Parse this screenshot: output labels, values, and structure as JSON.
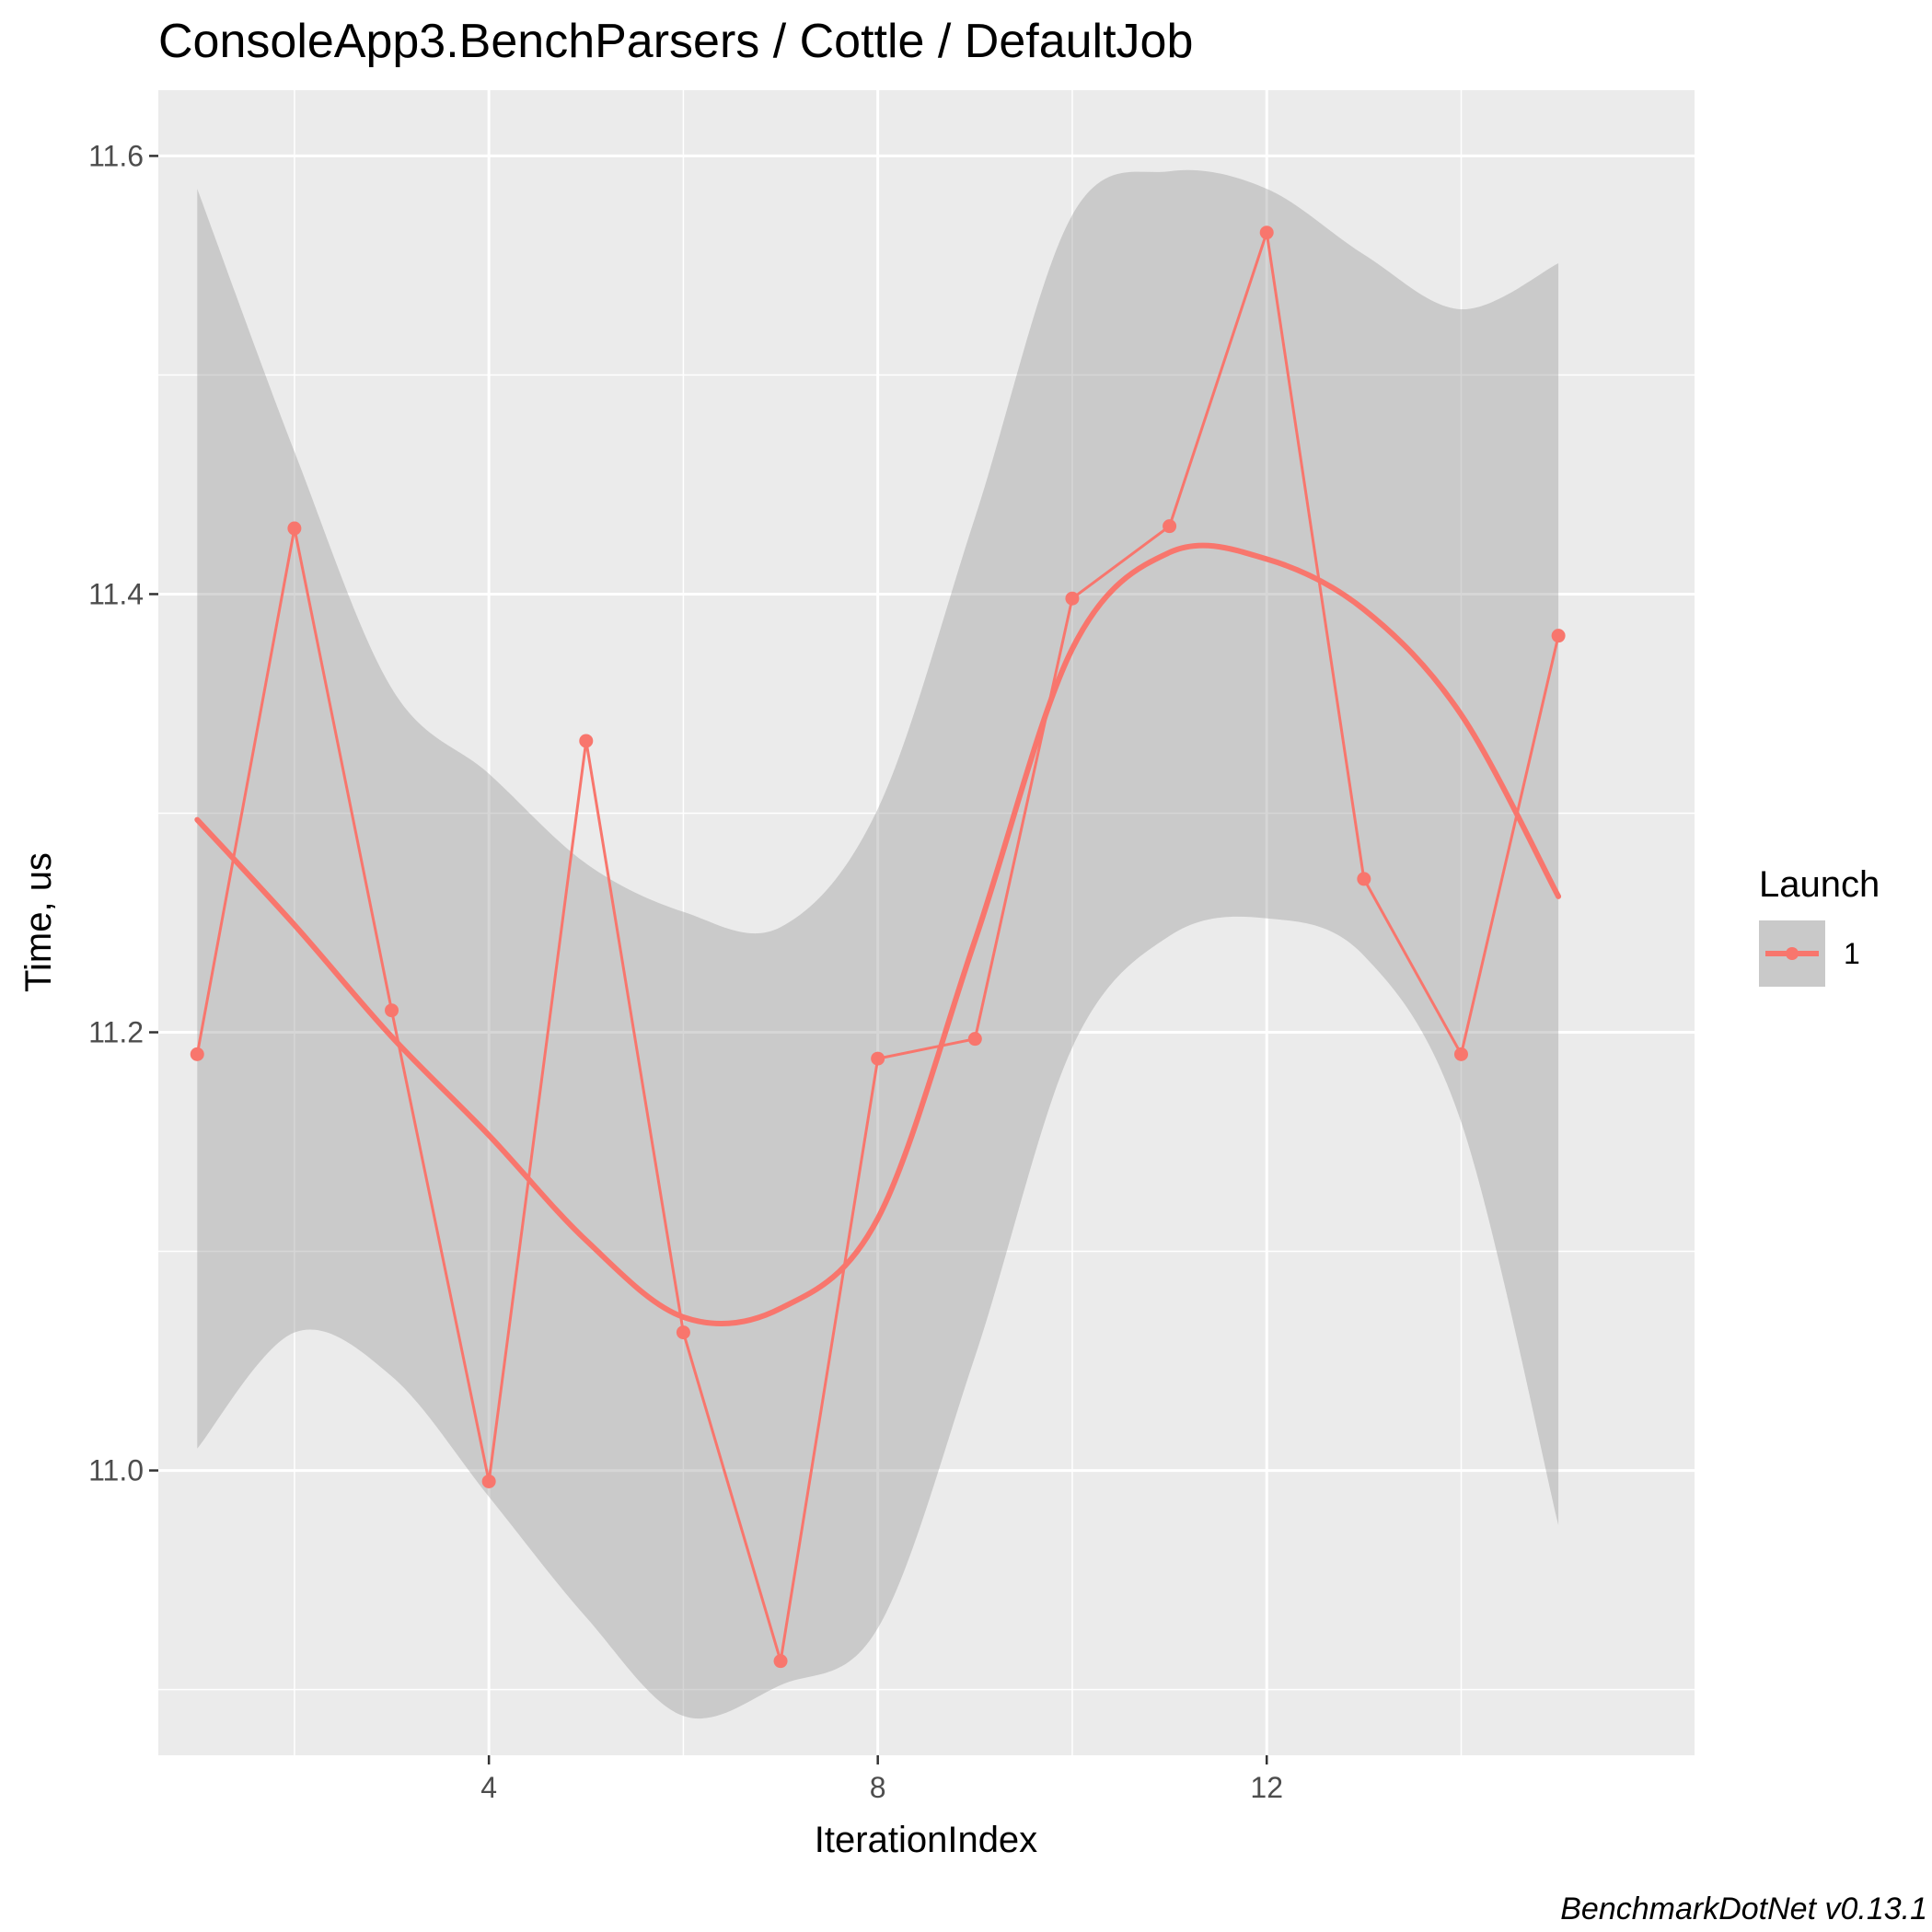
{
  "chart_data": {
    "type": "line",
    "title": "ConsoleApp3.BenchParsers / Cottle / DefaultJob",
    "xlabel": "IterationIndex",
    "ylabel": "Time, us",
    "caption": "BenchmarkDotNet v0.13.1",
    "xlim": [
      0.6,
      16.4
    ],
    "ylim": [
      10.87,
      11.63
    ],
    "x_ticks": [
      4,
      8,
      12
    ],
    "x_tick_labels": [
      "4",
      "8",
      "12"
    ],
    "x_minor_ticks": [
      2,
      6,
      10,
      14
    ],
    "y_ticks": [
      11.0,
      11.2,
      11.4,
      11.6
    ],
    "y_tick_labels": [
      "11.0",
      "11.2",
      "11.4",
      "11.6"
    ],
    "y_minor_ticks": [
      10.9,
      11.1,
      11.3,
      11.5
    ],
    "grid": true,
    "legend": {
      "title": "Launch",
      "position": "right",
      "entries": [
        "1"
      ]
    },
    "series": [
      {
        "name": "1",
        "color": "#F8766D",
        "x": [
          1,
          2,
          3,
          4,
          5,
          6,
          7,
          8,
          9,
          10,
          11,
          12,
          13,
          14,
          15
        ],
        "values": [
          11.19,
          11.43,
          11.21,
          10.995,
          11.333,
          11.063,
          10.913,
          11.188,
          11.197,
          11.398,
          11.431,
          11.565,
          11.27,
          11.19,
          11.381
        ]
      }
    ],
    "smooth": {
      "color": "#F8766D",
      "band_color": "#999999",
      "x": [
        1,
        2,
        3,
        4,
        5,
        6,
        7,
        8,
        9,
        10,
        11,
        12,
        13,
        14,
        15
      ],
      "values": [
        11.297,
        11.249,
        11.198,
        11.153,
        11.105,
        11.07,
        11.074,
        11.115,
        11.242,
        11.375,
        11.419,
        11.416,
        11.393,
        11.345,
        11.262
      ],
      "upper": [
        11.585,
        11.465,
        11.357,
        11.318,
        11.277,
        11.255,
        11.248,
        11.302,
        11.435,
        11.573,
        11.593,
        11.585,
        11.555,
        11.53,
        11.551
      ],
      "lower": [
        11.01,
        11.063,
        11.043,
        10.988,
        10.933,
        10.888,
        10.902,
        10.928,
        11.052,
        11.193,
        11.244,
        11.252,
        11.235,
        11.159,
        10.975
      ]
    }
  }
}
